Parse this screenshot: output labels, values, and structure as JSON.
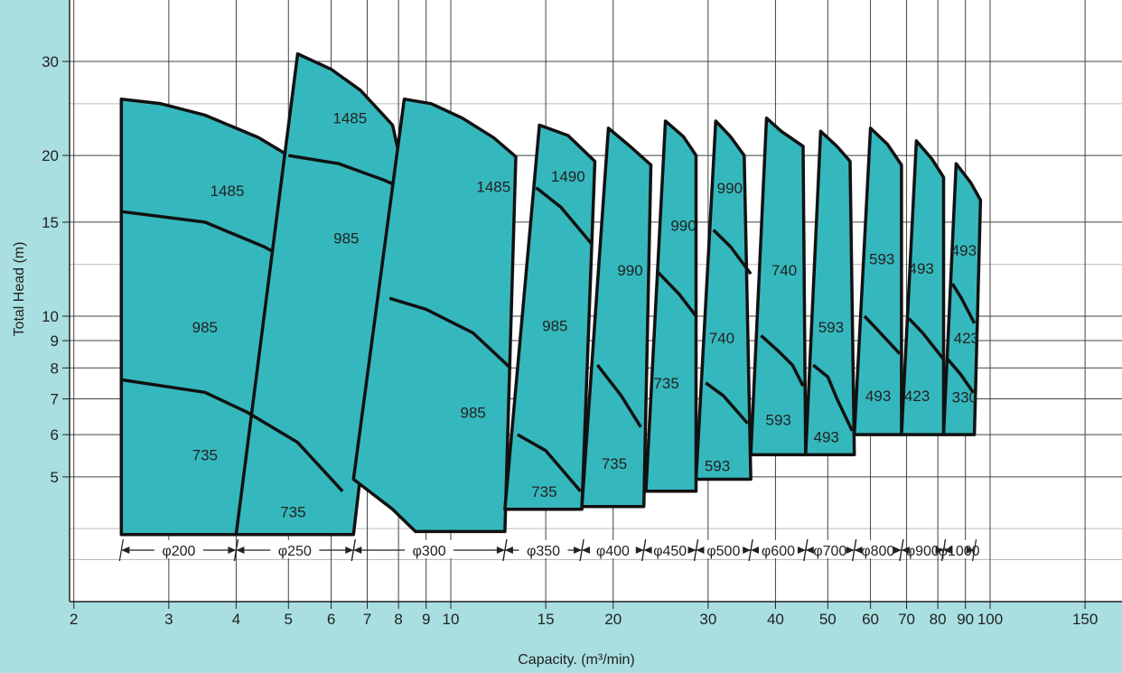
{
  "chart_data": {
    "type": "area",
    "xlabel": "Capacity. (m³/min)",
    "ylabel": "Total Head (m)",
    "x_scale": "log",
    "y_scale": "log",
    "xlim": [
      2,
      170
    ],
    "ylim": [
      3.2,
      34
    ],
    "grid": true,
    "x_ticks": [
      2,
      3,
      4,
      5,
      6,
      7,
      8,
      9,
      10,
      15,
      20,
      30,
      40,
      50,
      60,
      70,
      80,
      90,
      100,
      150
    ],
    "x_tick_labels": [
      "2",
      "3",
      "4",
      "5",
      "6",
      "7",
      "8",
      "9",
      "10",
      "15",
      "20",
      "30",
      "40",
      "50",
      "60",
      "70",
      "80",
      "90",
      "100",
      "150"
    ],
    "y_ticks": [
      5,
      6,
      7,
      8,
      9,
      10,
      15,
      20,
      30
    ],
    "y_tick_labels": [
      "5",
      "6",
      "7",
      "8",
      "9",
      "10",
      "15",
      "20",
      "30"
    ],
    "colors": {
      "region": "#35b8bd",
      "outline": "#111111",
      "background": "#a9dfe0",
      "plot": "#ffffff"
    },
    "regions": [
      {
        "size": "φ200",
        "outline": [
          [
            2.45,
            3.9
          ],
          [
            2.45,
            25.5
          ],
          [
            2.9,
            25
          ],
          [
            3.5,
            23.8
          ],
          [
            4.4,
            21.6
          ],
          [
            5,
            20
          ],
          [
            4,
            3.9
          ]
        ],
        "curves": [
          {
            "rpm": "985",
            "points": [
              [
                2.45,
                15.7
              ],
              [
                3.5,
                15
              ],
              [
                4.5,
                13.5
              ],
              [
                5.6,
                12
              ]
            ]
          },
          {
            "rpm": "735",
            "points": [
              [
                2.45,
                7.6
              ],
              [
                3.5,
                7.2
              ],
              [
                4.2,
                6.6
              ],
              [
                5.2,
                5.8
              ],
              [
                6.3,
                4.7
              ]
            ]
          }
        ],
        "labels": [
          {
            "text": "1485",
            "at": [
              3.85,
              17.2
            ]
          },
          {
            "text": "985",
            "at": [
              3.5,
              9.55
            ]
          },
          {
            "text": "735",
            "at": [
              3.5,
              5.5
            ]
          }
        ]
      },
      {
        "size": "φ250",
        "outline": [
          [
            4,
            3.9
          ],
          [
            5.2,
            31
          ],
          [
            6,
            29
          ],
          [
            6.8,
            26.5
          ],
          [
            7.8,
            22.8
          ],
          [
            8,
            20.3
          ],
          [
            6.6,
            3.9
          ]
        ],
        "curves": [
          {
            "rpm": "985",
            "points": [
              [
                5,
                20
              ],
              [
                6.2,
                19.3
              ],
              [
                7.5,
                18
              ],
              [
                8,
                17.5
              ]
            ]
          },
          {
            "rpm": "735",
            "points": [
              [
                4.2,
                6.6
              ],
              [
                5.2,
                5.8
              ],
              [
                6.3,
                4.7
              ]
            ]
          }
        ],
        "labels": [
          {
            "text": "1485",
            "at": [
              6.5,
              23.5
            ]
          },
          {
            "text": "985",
            "at": [
              6.4,
              14
            ]
          },
          {
            "text": "735",
            "at": [
              5.1,
              4.3
            ]
          }
        ]
      },
      {
        "size": "φ300",
        "outline": [
          [
            6.6,
            4.95
          ],
          [
            8.2,
            25.5
          ],
          [
            9.2,
            25
          ],
          [
            10.5,
            23.5
          ],
          [
            12,
            21.6
          ],
          [
            13.2,
            19.9
          ],
          [
            12.6,
            3.95
          ],
          [
            8.6,
            3.95
          ],
          [
            7.8,
            4.35
          ]
        ],
        "curves": [
          {
            "rpm": "985",
            "points": [
              [
                7.7,
                10.8
              ],
              [
                9,
                10.3
              ],
              [
                11,
                9.3
              ],
              [
                12.9,
                8
              ]
            ]
          }
        ],
        "labels": [
          {
            "text": "1485",
            "at": [
              12,
              17.5
            ]
          },
          {
            "text": "985",
            "at": [
              11,
              6.6
            ]
          }
        ]
      },
      {
        "size": "φ350",
        "outline": [
          [
            12.6,
            4.35
          ],
          [
            14.6,
            22.8
          ],
          [
            16.5,
            21.8
          ],
          [
            18.5,
            19.5
          ],
          [
            17.5,
            4.35
          ]
        ],
        "curves": [
          {
            "rpm": "985",
            "points": [
              [
                14.4,
                17.4
              ],
              [
                16,
                16
              ],
              [
                18.2,
                13.7
              ]
            ]
          },
          {
            "rpm": "735",
            "points": [
              [
                13.3,
                6
              ],
              [
                15,
                5.6
              ],
              [
                17.4,
                4.7
              ]
            ]
          }
        ],
        "labels": [
          {
            "text": "1490",
            "at": [
              16.5,
              18.3
            ]
          },
          {
            "text": "985",
            "at": [
              15.6,
              9.6
            ]
          },
          {
            "text": "735",
            "at": [
              14.9,
              4.7
            ]
          }
        ]
      },
      {
        "size": "φ400",
        "outline": [
          [
            17.5,
            4.4
          ],
          [
            19.6,
            22.5
          ],
          [
            21.5,
            20.8
          ],
          [
            23.5,
            19.2
          ],
          [
            22.8,
            4.4
          ]
        ],
        "curves": [
          {
            "rpm": "735",
            "points": [
              [
                18.7,
                8.1
              ],
              [
                20.7,
                7.1
              ],
              [
                22.5,
                6.2
              ]
            ]
          }
        ],
        "labels": [
          {
            "text": "990",
            "at": [
              21.5,
              12.2
            ]
          },
          {
            "text": "735",
            "at": [
              20.1,
              5.3
            ]
          }
        ]
      },
      {
        "size": "φ450",
        "outline": [
          [
            23,
            4.7
          ],
          [
            25,
            23.2
          ],
          [
            27,
            21.7
          ],
          [
            28.5,
            20
          ],
          [
            28.5,
            4.7
          ]
        ],
        "curves": [
          {
            "rpm": "990",
            "points": [
              [
                24.2,
                12.1
              ],
              [
                26.5,
                11
              ],
              [
                28.5,
                10
              ]
            ]
          }
        ],
        "labels": [
          {
            "text": "990",
            "at": [
              27,
              14.8
            ]
          },
          {
            "text": "735",
            "at": [
              25.1,
              7.5
            ]
          }
        ]
      },
      {
        "size": "φ500",
        "outline": [
          [
            28.5,
            4.95
          ],
          [
            31,
            23.2
          ],
          [
            33,
            21.7
          ],
          [
            35,
            20
          ],
          [
            36,
            4.95
          ]
        ],
        "curves": [
          {
            "rpm": "990",
            "points": [
              [
                30.7,
                14.5
              ],
              [
                33,
                13.5
              ],
              [
                36,
                12
              ]
            ]
          },
          {
            "rpm": "740",
            "points": [
              [
                29.7,
                7.5
              ],
              [
                32,
                7.1
              ],
              [
                35.5,
                6.3
              ]
            ]
          }
        ],
        "labels": [
          {
            "text": "990",
            "at": [
              32.9,
              17.4
            ]
          },
          {
            "text": "740",
            "at": [
              31.8,
              9.1
            ]
          },
          {
            "text": "593",
            "at": [
              31.2,
              5.25
            ]
          }
        ]
      },
      {
        "size": "φ600",
        "outline": [
          [
            36,
            5.5
          ],
          [
            38.5,
            23.5
          ],
          [
            41,
            22.2
          ],
          [
            45,
            20.8
          ],
          [
            45.5,
            5.5
          ]
        ],
        "curves": [
          {
            "rpm": "740",
            "points": [
              [
                37.6,
                9.2
              ],
              [
                40.5,
                8.6
              ],
              [
                43,
                8.1
              ],
              [
                45,
                7.4
              ]
            ]
          }
        ],
        "labels": [
          {
            "text": "740",
            "at": [
              41.5,
              12.2
            ]
          },
          {
            "text": "593",
            "at": [
              40.5,
              6.4
            ]
          }
        ]
      },
      {
        "size": "φ700",
        "outline": [
          [
            45.5,
            5.5
          ],
          [
            48.5,
            22.2
          ],
          [
            52,
            20.8
          ],
          [
            55,
            19.5
          ],
          [
            56,
            5.5
          ]
        ],
        "curves": [
          {
            "rpm": "593",
            "points": [
              [
                47,
                8.1
              ],
              [
                50,
                7.7
              ],
              [
                52,
                7
              ],
              [
                55.5,
                6.1
              ]
            ]
          }
        ],
        "labels": [
          {
            "text": "593",
            "at": [
              50.7,
              9.55
            ]
          },
          {
            "text": "493",
            "at": [
              49.7,
              5.95
            ]
          }
        ]
      },
      {
        "size": "φ800",
        "outline": [
          [
            56,
            6
          ],
          [
            60,
            22.5
          ],
          [
            64.5,
            21
          ],
          [
            68.5,
            19.2
          ],
          [
            68.5,
            6
          ]
        ],
        "curves": [
          {
            "rpm": "593",
            "points": [
              [
                58.5,
                10
              ],
              [
                62,
                9.4
              ],
              [
                68,
                8.5
              ]
            ]
          }
        ],
        "labels": [
          {
            "text": "593",
            "at": [
              63,
              12.8
            ]
          },
          {
            "text": "493",
            "at": [
              62,
              7.1
            ]
          }
        ]
      },
      {
        "size": "φ900",
        "outline": [
          [
            68.5,
            6
          ],
          [
            73,
            21.3
          ],
          [
            78,
            19.7
          ],
          [
            82,
            18.2
          ],
          [
            82,
            6
          ]
        ],
        "curves": [
          {
            "rpm": "493",
            "points": [
              [
                70.7,
                9.9
              ],
              [
                75,
                9.3
              ],
              [
                82,
                8.3
              ]
            ]
          }
        ],
        "labels": [
          {
            "text": "493",
            "at": [
              74.5,
              12.3
            ]
          },
          {
            "text": "423",
            "at": [
              73.2,
              7.1
            ]
          }
        ]
      },
      {
        "size": "φ1000",
        "outline": [
          [
            82,
            6
          ],
          [
            86.5,
            19.3
          ],
          [
            92,
            17.8
          ],
          [
            96,
            16.5
          ],
          [
            93.5,
            6
          ]
        ],
        "curves": [
          {
            "rpm": "423",
            "points": [
              [
                85.1,
                11.5
              ],
              [
                88.5,
                10.8
              ],
              [
                93.5,
                9.7
              ]
            ]
          },
          {
            "rpm": "330",
            "points": [
              [
                83.5,
                8.3
              ],
              [
                88,
                7.8
              ],
              [
                93,
                7.2
              ]
            ]
          }
        ],
        "labels": [
          {
            "text": "493",
            "at": [
              89.4,
              13.3
            ]
          },
          {
            "text": "423",
            "at": [
              90.4,
              9.1
            ]
          },
          {
            "text": "330",
            "at": [
              89.7,
              7.05
            ]
          }
        ]
      }
    ],
    "spans": [
      {
        "label": "φ200",
        "from": 2.45,
        "to": 4.0
      },
      {
        "label": "φ250",
        "from": 4.0,
        "to": 6.6
      },
      {
        "label": "φ300",
        "from": 6.6,
        "to": 12.6
      },
      {
        "label": "φ350",
        "from": 12.6,
        "to": 17.5
      },
      {
        "label": "φ400",
        "from": 17.5,
        "to": 22.8
      },
      {
        "label": "φ450",
        "from": 22.8,
        "to": 28.5
      },
      {
        "label": "φ500",
        "from": 28.5,
        "to": 36
      },
      {
        "label": "φ600",
        "from": 36,
        "to": 45.5
      },
      {
        "label": "φ700",
        "from": 45.5,
        "to": 56
      },
      {
        "label": "φ800",
        "from": 56,
        "to": 68.5
      },
      {
        "label": "φ900",
        "from": 68.5,
        "to": 82
      },
      {
        "label": "φ1000",
        "from": 82,
        "to": 93.5
      }
    ]
  }
}
